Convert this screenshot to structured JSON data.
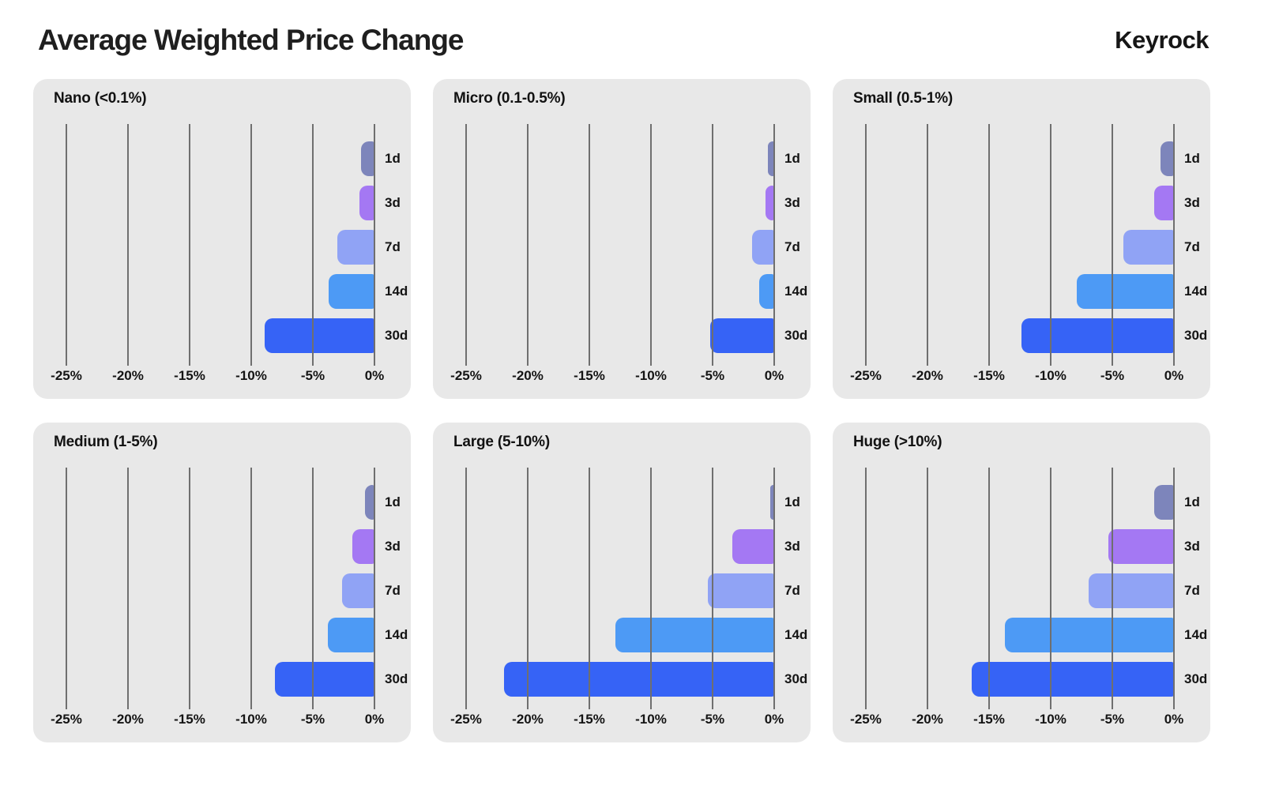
{
  "header": {
    "title": "Average Weighted Price Change",
    "brand": "Keyrock"
  },
  "styles": {
    "page_bg": "#ffffff",
    "panel_bg": "#e8e8e8",
    "grid_color": "#6f6f6f",
    "text_color": "#141414",
    "series_colors": {
      "1d": "#7d85bb",
      "3d": "#a478f3",
      "7d": "#90a3f5",
      "14d": "#4d9af5",
      "30d": "#3663f6"
    }
  },
  "chart_data": [
    {
      "type": "bar",
      "orientation": "horizontal",
      "title": "Nano (<0.1%)",
      "categories": [
        "1d",
        "3d",
        "7d",
        "14d",
        "30d"
      ],
      "values": [
        -1.1,
        -1.2,
        -3.0,
        -3.7,
        -8.9
      ],
      "value_unit": "%",
      "xlim": [
        -25,
        0
      ],
      "xticks": [
        -25,
        -20,
        -15,
        -10,
        -5,
        0
      ],
      "xtick_labels": [
        "-25%",
        "-20%",
        "-15%",
        "-10%",
        "-5%",
        "0%"
      ],
      "grid": "vertical",
      "legend": "none"
    },
    {
      "type": "bar",
      "orientation": "horizontal",
      "title": "Micro (0.1-0.5%)",
      "categories": [
        "1d",
        "3d",
        "7d",
        "14d",
        "30d"
      ],
      "values": [
        -0.5,
        -0.7,
        -1.8,
        -1.2,
        -5.2
      ],
      "value_unit": "%",
      "xlim": [
        -25,
        0
      ],
      "xticks": [
        -25,
        -20,
        -15,
        -10,
        -5,
        0
      ],
      "xtick_labels": [
        "-25%",
        "-20%",
        "-15%",
        "-10%",
        "-5%",
        "0%"
      ],
      "grid": "vertical",
      "legend": "none"
    },
    {
      "type": "bar",
      "orientation": "horizontal",
      "title": "Small (0.5-1%)",
      "categories": [
        "1d",
        "3d",
        "7d",
        "14d",
        "30d"
      ],
      "values": [
        -1.1,
        -1.6,
        -4.1,
        -7.9,
        -12.4
      ],
      "value_unit": "%",
      "xlim": [
        -25,
        0
      ],
      "xticks": [
        -25,
        -20,
        -15,
        -10,
        -5,
        0
      ],
      "xtick_labels": [
        "-25%",
        "-20%",
        "-15%",
        "-10%",
        "-5%",
        "0%"
      ],
      "grid": "vertical",
      "legend": "none"
    },
    {
      "type": "bar",
      "orientation": "horizontal",
      "title": "Medium (1-5%)",
      "categories": [
        "1d",
        "3d",
        "7d",
        "14d",
        "30d"
      ],
      "values": [
        -0.8,
        -1.8,
        -2.6,
        -3.8,
        -8.1
      ],
      "value_unit": "%",
      "xlim": [
        -25,
        0
      ],
      "xticks": [
        -25,
        -20,
        -15,
        -10,
        -5,
        0
      ],
      "xtick_labels": [
        "-25%",
        "-20%",
        "-15%",
        "-10%",
        "-5%",
        "0%"
      ],
      "grid": "vertical",
      "legend": "none"
    },
    {
      "type": "bar",
      "orientation": "horizontal",
      "title": "Large (5-10%)",
      "categories": [
        "1d",
        "3d",
        "7d",
        "14d",
        "30d"
      ],
      "values": [
        -0.3,
        -3.4,
        -5.4,
        -12.9,
        -21.9
      ],
      "value_unit": "%",
      "xlim": [
        -25,
        0
      ],
      "xticks": [
        -25,
        -20,
        -15,
        -10,
        -5,
        0
      ],
      "xtick_labels": [
        "-25%",
        "-20%",
        "-15%",
        "-10%",
        "-5%",
        "0%"
      ],
      "grid": "vertical",
      "legend": "none"
    },
    {
      "type": "bar",
      "orientation": "horizontal",
      "title": "Huge (>10%)",
      "categories": [
        "1d",
        "3d",
        "7d",
        "14d",
        "30d"
      ],
      "values": [
        -1.6,
        -5.3,
        -6.9,
        -13.7,
        -16.4
      ],
      "value_unit": "%",
      "xlim": [
        -25,
        0
      ],
      "xticks": [
        -25,
        -20,
        -15,
        -10,
        -5,
        0
      ],
      "xtick_labels": [
        "-25%",
        "-20%",
        "-15%",
        "-10%",
        "-5%",
        "0%"
      ],
      "grid": "vertical",
      "legend": "none"
    }
  ]
}
